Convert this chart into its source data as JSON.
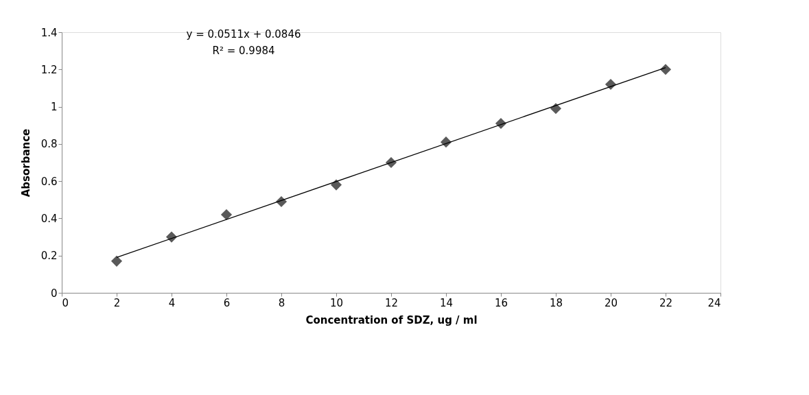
{
  "chart_data": {
    "type": "scatter",
    "xlabel": "Concentration of SDZ, ug / ml",
    "ylabel": "Absorbance",
    "annotations": [
      "y = 0.0511x + 0.0846",
      "R² = 0.9984"
    ],
    "x": [
      2,
      4,
      6,
      8,
      10,
      12,
      14,
      16,
      18,
      20,
      22
    ],
    "series": [
      {
        "color": "#595959",
        "marker": "diamond",
        "values": [
          0.17,
          0.3,
          0.42,
          0.49,
          0.58,
          0.7,
          0.81,
          0.91,
          0.99,
          1.12,
          1.2
        ]
      },
      {
        "type": "line",
        "color": "#000000",
        "x": [
          2,
          22
        ],
        "values": [
          0.19,
          1.21
        ],
        "line_style": "solid"
      }
    ],
    "xlim": [
      0,
      24
    ],
    "xticks": [
      0,
      2,
      4,
      6,
      8,
      10,
      12,
      14,
      16,
      18,
      20,
      22,
      24
    ],
    "ylim": [
      0,
      1.4
    ],
    "yticks": [
      0,
      0.2,
      0.4,
      0.6,
      0.8,
      1,
      1.2,
      1.4
    ],
    "grid": false
  }
}
